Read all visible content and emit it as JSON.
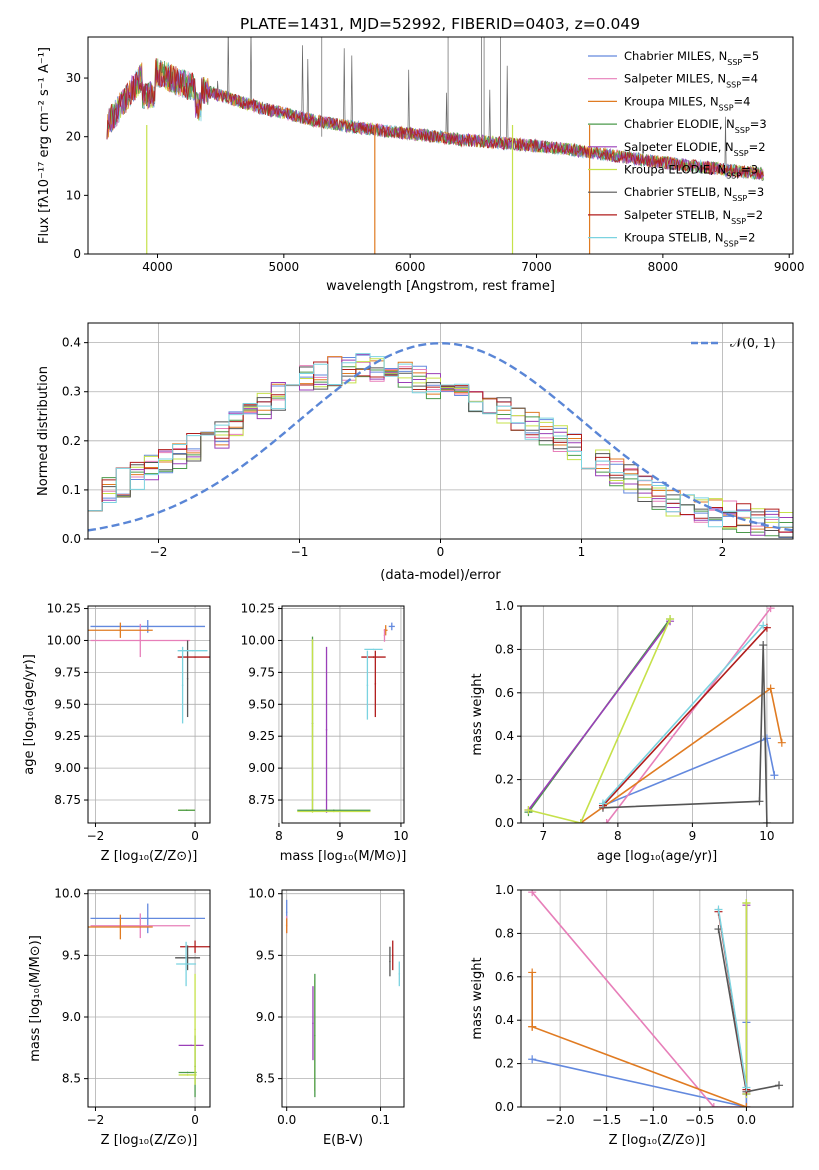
{
  "figure_title": "PLATE=1431, MJD=52992, FIBERID=0403, z=0.049",
  "colors": [
    "#6389de",
    "#e77fb9",
    "#e07b22",
    "#4b9a4b",
    "#9a3fb8",
    "#c6e14a",
    "#555555",
    "#b01c1c",
    "#7bd3e0"
  ],
  "models": [
    {
      "label": "Chabrier MILES, N",
      "nssp": "5"
    },
    {
      "label": "Salpeter MILES, N",
      "nssp": "4"
    },
    {
      "label": "Kroupa MILES, N",
      "nssp": "4"
    },
    {
      "label": "Chabrier ELODIE, N",
      "nssp": "3"
    },
    {
      "label": "Salpeter ELODIE, N",
      "nssp": "2"
    },
    {
      "label": "Kroupa ELODIE, N",
      "nssp": "3"
    },
    {
      "label": "Chabrier STELIB, N",
      "nssp": "3"
    },
    {
      "label": "Salpeter STELIB, N",
      "nssp": "2"
    },
    {
      "label": "Kroupa STELIB, N",
      "nssp": "2"
    }
  ],
  "chart_data": [
    {
      "id": "spectrum",
      "type": "line",
      "title": "PLATE=1431, MJD=52992, FIBERID=0403, z=0.049",
      "xlabel": "wavelength [Angstrom, rest frame]",
      "ylabel": "Flux [fλ10⁻¹⁷ erg cm⁻² s⁻¹ A⁻¹]",
      "xlim": [
        3450,
        9030
      ],
      "ylim": [
        0,
        37
      ],
      "xticks": [
        4000,
        5000,
        6000,
        7000,
        8000,
        9000
      ],
      "yticks": [
        0,
        10,
        20,
        30
      ],
      "legend": "upper right",
      "continuum": {
        "x": [
          3600,
          3700,
          3800,
          3900,
          4000,
          4200,
          4500,
          4800,
          5000,
          5300,
          5600,
          6000,
          6400,
          6800,
          7200,
          7600,
          8000,
          8400,
          8800
        ],
        "y": [
          22,
          25,
          28,
          31,
          31,
          29,
          27,
          25,
          24,
          22.5,
          21.5,
          20.5,
          19.5,
          18.8,
          18,
          16.8,
          15.6,
          14.6,
          13.6
        ]
      }
    },
    {
      "id": "residuals",
      "type": "step",
      "xlabel": "(data-model)/error",
      "ylabel": "Normed distribution",
      "xlim": [
        -2.5,
        2.5
      ],
      "ylim": [
        0,
        0.44
      ],
      "xticks": [
        -2,
        -1,
        0,
        1,
        2
      ],
      "yticks": [
        0.0,
        0.1,
        0.2,
        0.3,
        0.4
      ],
      "gaussian_label": "𝒩(0, 1)",
      "bin_width": 0.1,
      "envelope": {
        "x": [
          -2.5,
          -2.0,
          -1.5,
          -1.2,
          -1.0,
          -0.8,
          -0.5,
          -0.2,
          0.0,
          0.3,
          0.6,
          1.0,
          1.3,
          1.6,
          2.0,
          2.5
        ],
        "y": [
          0.08,
          0.15,
          0.22,
          0.28,
          0.32,
          0.34,
          0.35,
          0.33,
          0.31,
          0.28,
          0.24,
          0.18,
          0.13,
          0.08,
          0.05,
          0.025
        ]
      }
    },
    {
      "id": "age_vs_Z",
      "type": "errorbar",
      "xlabel": "Z [log₁₀(Z/Z⊙)]",
      "ylabel": "age  [log₁₀(age/yr)]",
      "xlim": [
        -2.15,
        0.3
      ],
      "ylim": [
        8.57,
        10.27
      ],
      "xticks": [
        -2,
        0
      ],
      "yticks": [
        8.75,
        9.0,
        9.25,
        9.5,
        9.75,
        10.0,
        10.25
      ],
      "points": [
        {
          "c": 0,
          "x": -0.95,
          "xerr": 1.15,
          "y": 10.11,
          "yerr": 0.05
        },
        {
          "c": 1,
          "x": -1.1,
          "xerr": 1.0,
          "y": 10.0,
          "yerr": 0.13
        },
        {
          "c": 2,
          "x": -1.5,
          "xerr": 0.65,
          "y": 10.08,
          "yerr": 0.06
        },
        {
          "c": 5,
          "x": -0.17,
          "xerr": 0.17,
          "y": 8.67,
          "yerr": 0.0
        },
        {
          "c": 3,
          "x": -0.17,
          "xerr": 0.17,
          "y": 8.67,
          "yerr": 0.0
        },
        {
          "c": 6,
          "x": -0.15,
          "xerr": 0.0,
          "y": 9.7,
          "yerr": 0.3
        },
        {
          "c": 8,
          "x": -0.05,
          "xerr": 0.3,
          "y": 9.92,
          "yerr": 0.0
        },
        {
          "c": 7,
          "x": 0.0,
          "xerr": 0.35,
          "y": 9.87,
          "yerr": 0.0
        },
        {
          "c": 8,
          "x": -0.25,
          "xerr": 0.0,
          "y": 9.65,
          "yerr": 0.3
        }
      ]
    },
    {
      "id": "age_vs_mass",
      "type": "errorbar",
      "xlabel": "mass [log₁₀(M/M⊙)]",
      "ylabel": "",
      "xlim": [
        8.05,
        10.05
      ],
      "ylim": [
        8.57,
        10.27
      ],
      "xticks": [
        8,
        9,
        10
      ],
      "yticks": [
        8.75,
        9.0,
        9.25,
        9.5,
        9.75,
        10.0,
        10.25
      ],
      "points": [
        {
          "c": 3,
          "x": 8.55,
          "xerr": 0.0,
          "y": 9.35,
          "yerr": 0.68
        },
        {
          "c": 5,
          "x": 8.55,
          "xerr": 0.0,
          "y": 9.33,
          "yerr": 0.68
        },
        {
          "c": 4,
          "x": 8.78,
          "xerr": 0.0,
          "y": 9.3,
          "yerr": 0.65
        },
        {
          "c": 5,
          "x": 8.9,
          "xerr": 0.6,
          "y": 8.66,
          "yerr": 0.0
        },
        {
          "c": 3,
          "x": 8.9,
          "xerr": 0.6,
          "y": 8.67,
          "yerr": 0.0
        },
        {
          "c": 7,
          "x": 9.55,
          "xerr": 0.2,
          "y": 9.87,
          "yerr": 0.0
        },
        {
          "c": 7,
          "x": 9.58,
          "xerr": 0.0,
          "y": 9.66,
          "yerr": 0.26
        },
        {
          "c": 8,
          "x": 9.45,
          "xerr": 0.0,
          "y": 9.65,
          "yerr": 0.27
        },
        {
          "c": 8,
          "x": 9.55,
          "xerr": 0.15,
          "y": 9.93,
          "yerr": 0.0
        },
        {
          "c": 0,
          "x": 9.85,
          "xerr": 0.05,
          "y": 10.11,
          "yerr": 0.03
        },
        {
          "c": 2,
          "x": 9.75,
          "xerr": 0.03,
          "y": 10.08,
          "yerr": 0.04
        },
        {
          "c": 1,
          "x": 9.73,
          "xerr": 0.0,
          "y": 10.04,
          "yerr": 0.05
        }
      ]
    },
    {
      "id": "mw_vs_age",
      "type": "line",
      "xlabel": "age  [log₁₀(age/yr)]",
      "ylabel": "mass weight",
      "xlim": [
        6.7,
        10.35
      ],
      "ylim": [
        0,
        1
      ],
      "xticks": [
        7,
        8,
        9,
        10
      ],
      "yticks": [
        0.0,
        0.2,
        0.4,
        0.6,
        0.8,
        1.0
      ],
      "series": [
        {
          "c": 0,
          "x": [
            7.8,
            10.0,
            10.1
          ],
          "y": [
            0.08,
            0.39,
            0.22
          ]
        },
        {
          "c": 1,
          "x": [
            7.85,
            10.05
          ],
          "y": [
            0.0,
            0.99
          ]
        },
        {
          "c": 2,
          "x": [
            7.5,
            10.05,
            10.2
          ],
          "y": [
            0.0,
            0.62,
            0.37
          ]
        },
        {
          "c": 3,
          "x": [
            6.8,
            8.7
          ],
          "y": [
            0.05,
            0.94
          ]
        },
        {
          "c": 4,
          "x": [
            6.8,
            8.7
          ],
          "y": [
            0.06,
            0.93
          ]
        },
        {
          "c": 5,
          "x": [
            6.8,
            7.5,
            8.7
          ],
          "y": [
            0.06,
            0.0,
            0.94
          ]
        },
        {
          "c": 6,
          "x": [
            7.8,
            9.9,
            9.95,
            10.0
          ],
          "y": [
            0.07,
            0.1,
            0.82,
            0.0
          ]
        },
        {
          "c": 7,
          "x": [
            7.8,
            10.0
          ],
          "y": [
            0.08,
            0.9
          ]
        },
        {
          "c": 8,
          "x": [
            7.8,
            9.95
          ],
          "y": [
            0.09,
            0.91
          ]
        }
      ]
    },
    {
      "id": "mass_vs_Z",
      "type": "errorbar",
      "xlabel": "Z [log₁₀(Z/Z⊙)]",
      "ylabel": "mass [log₁₀(M/M⊙)]",
      "xlim": [
        -2.15,
        0.3
      ],
      "ylim": [
        8.27,
        10.03
      ],
      "xticks": [
        -2,
        0
      ],
      "yticks": [
        8.5,
        9.0,
        9.5,
        10.0
      ],
      "points": [
        {
          "c": 0,
          "x": -0.95,
          "xerr": 1.15,
          "y": 9.8,
          "yerr": 0.12
        },
        {
          "c": 1,
          "x": -1.1,
          "xerr": 1.0,
          "y": 9.74,
          "yerr": 0.1
        },
        {
          "c": 2,
          "x": -1.5,
          "xerr": 0.65,
          "y": 9.73,
          "yerr": 0.1
        },
        {
          "c": 3,
          "x": -0.15,
          "xerr": 0.18,
          "y": 8.55,
          "yerr": 0.0
        },
        {
          "c": 5,
          "x": -0.15,
          "xerr": 0.18,
          "y": 8.53,
          "yerr": 0.0
        },
        {
          "c": 4,
          "x": -0.08,
          "xerr": 0.25,
          "y": 8.77,
          "yerr": 0.0
        },
        {
          "c": 7,
          "x": 0.0,
          "xerr": 0.3,
          "y": 9.57,
          "yerr": 0.05
        },
        {
          "c": 6,
          "x": -0.15,
          "xerr": 0.25,
          "y": 9.48,
          "yerr": 0.1
        },
        {
          "c": 8,
          "x": -0.18,
          "xerr": 0.2,
          "y": 9.43,
          "yerr": 0.18
        },
        {
          "c": 3,
          "x": 0.0,
          "xerr": 0.0,
          "y": 8.6,
          "yerr": 0.25
        },
        {
          "c": 5,
          "x": 0.0,
          "xerr": 0.0,
          "y": 8.9,
          "yerr": 0.45
        }
      ]
    },
    {
      "id": "mass_vs_EBV",
      "type": "errorbar",
      "xlabel": "E(B-V)",
      "ylabel": "",
      "xlim": [
        -0.005,
        0.125
      ],
      "ylim": [
        8.27,
        10.03
      ],
      "xticks": [
        0.0,
        0.1
      ],
      "yticks": [
        8.5,
        9.0,
        9.5,
        10.0
      ],
      "points": [
        {
          "c": 0,
          "x": 0.0,
          "xerr": 0.0,
          "y": 9.85,
          "yerr": 0.1
        },
        {
          "c": 1,
          "x": 0.0,
          "xerr": 0.0,
          "y": 9.75,
          "yerr": 0.07
        },
        {
          "c": 2,
          "x": 0.0,
          "xerr": 0.0,
          "y": 9.74,
          "yerr": 0.06
        },
        {
          "c": 4,
          "x": 0.028,
          "xerr": 0.0,
          "y": 8.95,
          "yerr": 0.3
        },
        {
          "c": 5,
          "x": 0.03,
          "xerr": 0.0,
          "y": 8.85,
          "yerr": 0.45
        },
        {
          "c": 3,
          "x": 0.03,
          "xerr": 0.0,
          "y": 8.85,
          "yerr": 0.5
        },
        {
          "c": 7,
          "x": 0.113,
          "xerr": 0.0,
          "y": 9.5,
          "yerr": 0.12
        },
        {
          "c": 6,
          "x": 0.11,
          "xerr": 0.0,
          "y": 9.45,
          "yerr": 0.12
        },
        {
          "c": 8,
          "x": 0.12,
          "xerr": 0.0,
          "y": 9.35,
          "yerr": 0.1
        }
      ]
    },
    {
      "id": "mw_vs_Z",
      "type": "line",
      "xlabel": "Z [log₁₀(Z/Z⊙)]",
      "ylabel": "mass weight",
      "xlim": [
        -2.42,
        0.5
      ],
      "ylim": [
        0,
        1
      ],
      "xticks": [
        -2.0,
        -1.5,
        -1.0,
        -0.5,
        0.0
      ],
      "yticks": [
        0.0,
        0.2,
        0.4,
        0.6,
        0.8,
        1.0
      ],
      "series": [
        {
          "c": 0,
          "x": [
            -2.3,
            0.0,
            0.0
          ],
          "y": [
            0.22,
            0.0,
            0.39
          ]
        },
        {
          "c": 1,
          "x": [
            -2.3,
            -0.35,
            0.0
          ],
          "y": [
            0.99,
            0.0,
            0.0
          ]
        },
        {
          "c": 2,
          "x": [
            -2.3,
            -2.3,
            -2.3,
            0.0
          ],
          "y": [
            0.62,
            0.37,
            0.37,
            0.0
          ]
        },
        {
          "c": 3,
          "x": [
            0.0,
            0.0
          ],
          "y": [
            0.06,
            0.94
          ]
        },
        {
          "c": 4,
          "x": [
            0.0,
            0.0
          ],
          "y": [
            0.06,
            0.93
          ]
        },
        {
          "c": 5,
          "x": [
            0.0,
            0.0
          ],
          "y": [
            0.06,
            0.94
          ]
        },
        {
          "c": 6,
          "x": [
            -0.3,
            0.0,
            0.35
          ],
          "y": [
            0.82,
            0.07,
            0.1
          ]
        },
        {
          "c": 7,
          "x": [
            -0.3,
            0.0
          ],
          "y": [
            0.9,
            0.08
          ]
        },
        {
          "c": 8,
          "x": [
            -0.3,
            0.0
          ],
          "y": [
            0.91,
            0.09
          ]
        }
      ]
    }
  ]
}
